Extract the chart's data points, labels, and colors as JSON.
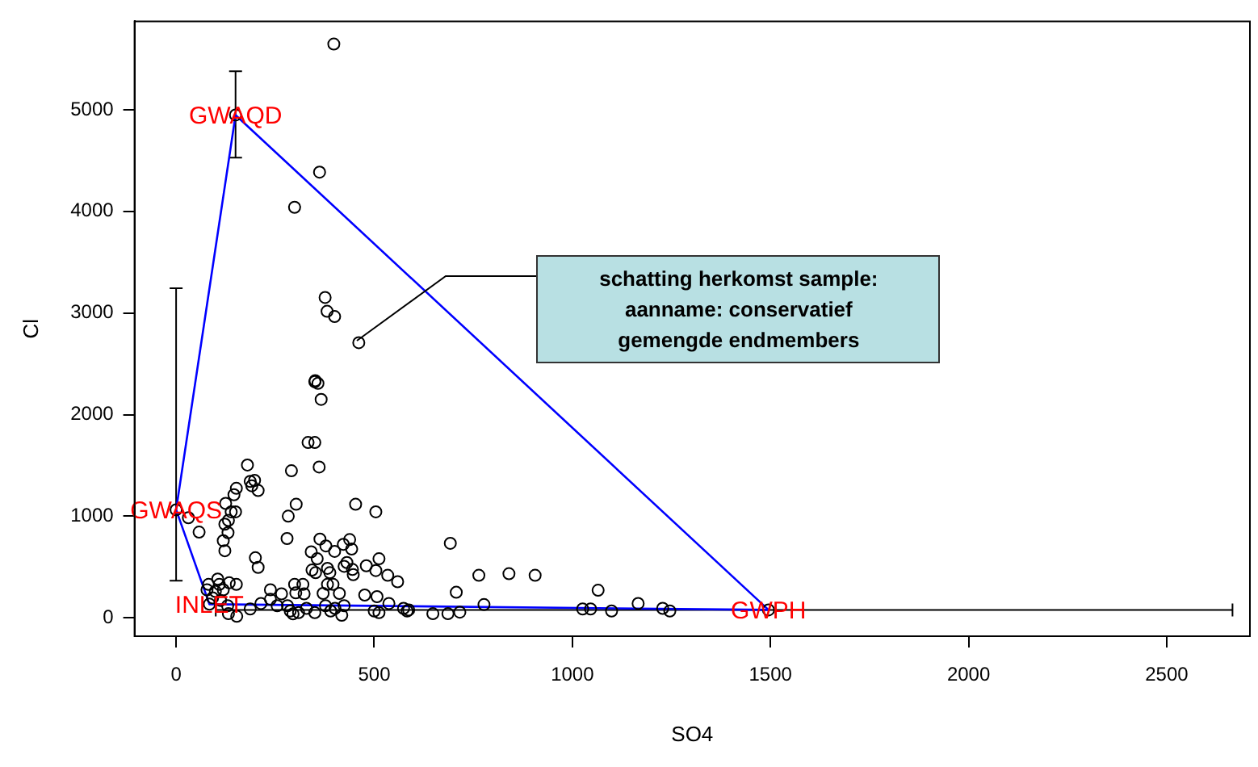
{
  "chart_data": {
    "type": "scatter",
    "xlabel": "SO4",
    "ylabel": "Cl",
    "xlim": [
      -105,
      2710
    ],
    "ylim": [
      -180,
      5870
    ],
    "xticks": [
      0,
      500,
      1000,
      1500,
      2000,
      2500
    ],
    "yticks": [
      0,
      1000,
      2000,
      3000,
      4000,
      5000
    ],
    "grid": false,
    "legend": false,
    "marker": "circle",
    "series": [
      {
        "type": "scatter",
        "color": "#000000",
        "x": [
          398,
          362,
          299,
          376,
          381,
          400,
          461,
          351,
          350,
          358,
          366,
          333,
          350,
          361,
          291,
          180,
          187,
          198,
          207,
          191,
          152,
          146,
          125,
          150,
          139,
          132,
          123,
          131,
          119,
          123,
          58,
          31,
          303,
          283,
          280,
          453,
          504,
          341,
          363,
          378,
          400,
          422,
          438,
          443,
          431,
          445,
          447,
          424,
          356,
          343,
          352,
          382,
          388,
          396,
          382,
          371,
          412,
          480,
          512,
          534,
          559,
          504,
          476,
          507,
          537,
          500,
          512,
          574,
          583,
          200,
          207,
          299,
          320,
          302,
          323,
          266,
          238,
          238,
          214,
          187,
          152,
          134,
          105,
          109,
          82,
          78,
          99,
          119,
          92,
          112,
          130,
          153,
          132,
          288,
          295,
          309,
          281,
          350,
          377,
          401,
          418,
          390,
          424,
          329,
          255,
          692,
          764,
          840,
          906,
          707,
          1065,
          777,
          648,
          686,
          716,
          587,
          1026,
          1046,
          1099,
          1166,
          1228,
          1246
        ],
        "values": [
          5646,
          4386,
          4040,
          3153,
          3017,
          2965,
          2708,
          2335,
          2324,
          2308,
          2150,
          1726,
          1726,
          1485,
          1448,
          1505,
          1343,
          1353,
          1253,
          1300,
          1275,
          1212,
          1127,
          1044,
          1044,
          960,
          922,
          839,
          760,
          661,
          844,
          986,
          1118,
          1001,
          781,
          1118,
          1044,
          650,
          776,
          708,
          655,
          724,
          771,
          677,
          545,
          477,
          425,
          508,
          582,
          471,
          445,
          488,
          445,
          330,
          330,
          241,
          241,
          513,
          582,
          419,
          356,
          466,
          225,
          209,
          142,
          68,
          52,
          94,
          68,
          592,
          497,
          330,
          330,
          246,
          237,
          237,
          277,
          183,
          142,
          88,
          330,
          346,
          382,
          330,
          330,
          277,
          261,
          277,
          198,
          172,
          120,
          16,
          42,
          68,
          40,
          52,
          120,
          52,
          120,
          94,
          26,
          68,
          120,
          94,
          120,
          734,
          419,
          435,
          419,
          252,
          272,
          131,
          42,
          42,
          57,
          79,
          88,
          88,
          68,
          142,
          94,
          68
        ]
      },
      {
        "type": "scatter",
        "color": "#000000",
        "x": [
          0,
          150,
          1495,
          84
        ],
        "values": [
          1064,
          4948,
          79,
          135
        ],
        "errors": [
          [
            367,
            3243
          ],
          [
            4528,
            5378
          ],
          null,
          null
        ],
        "xerrors": [
          null,
          null,
          [
            100,
            2666
          ],
          null
        ]
      },
      {
        "type": "line",
        "color": "#0000ff",
        "marker": "none",
        "x": [
          0,
          150,
          1495
        ],
        "values": [
          1064,
          4948,
          79
        ]
      },
      {
        "type": "line",
        "color": "#0000ff",
        "marker": "none",
        "x": [
          0,
          84,
          1495
        ],
        "values": [
          1064,
          135,
          79
        ]
      }
    ],
    "annotations": [
      {
        "text": "GWAQD",
        "x": 150,
        "y": 4948
      },
      {
        "text": "GWAQS",
        "x": 0,
        "y": 1064
      },
      {
        "text": "INLET",
        "x": 84,
        "y": 135
      },
      {
        "text": "GWPH",
        "x": 1495,
        "y": 79
      },
      {
        "text": "schatting herkomst sample:\naanname: conservatief\ngemengde endmembers"
      }
    ]
  }
}
